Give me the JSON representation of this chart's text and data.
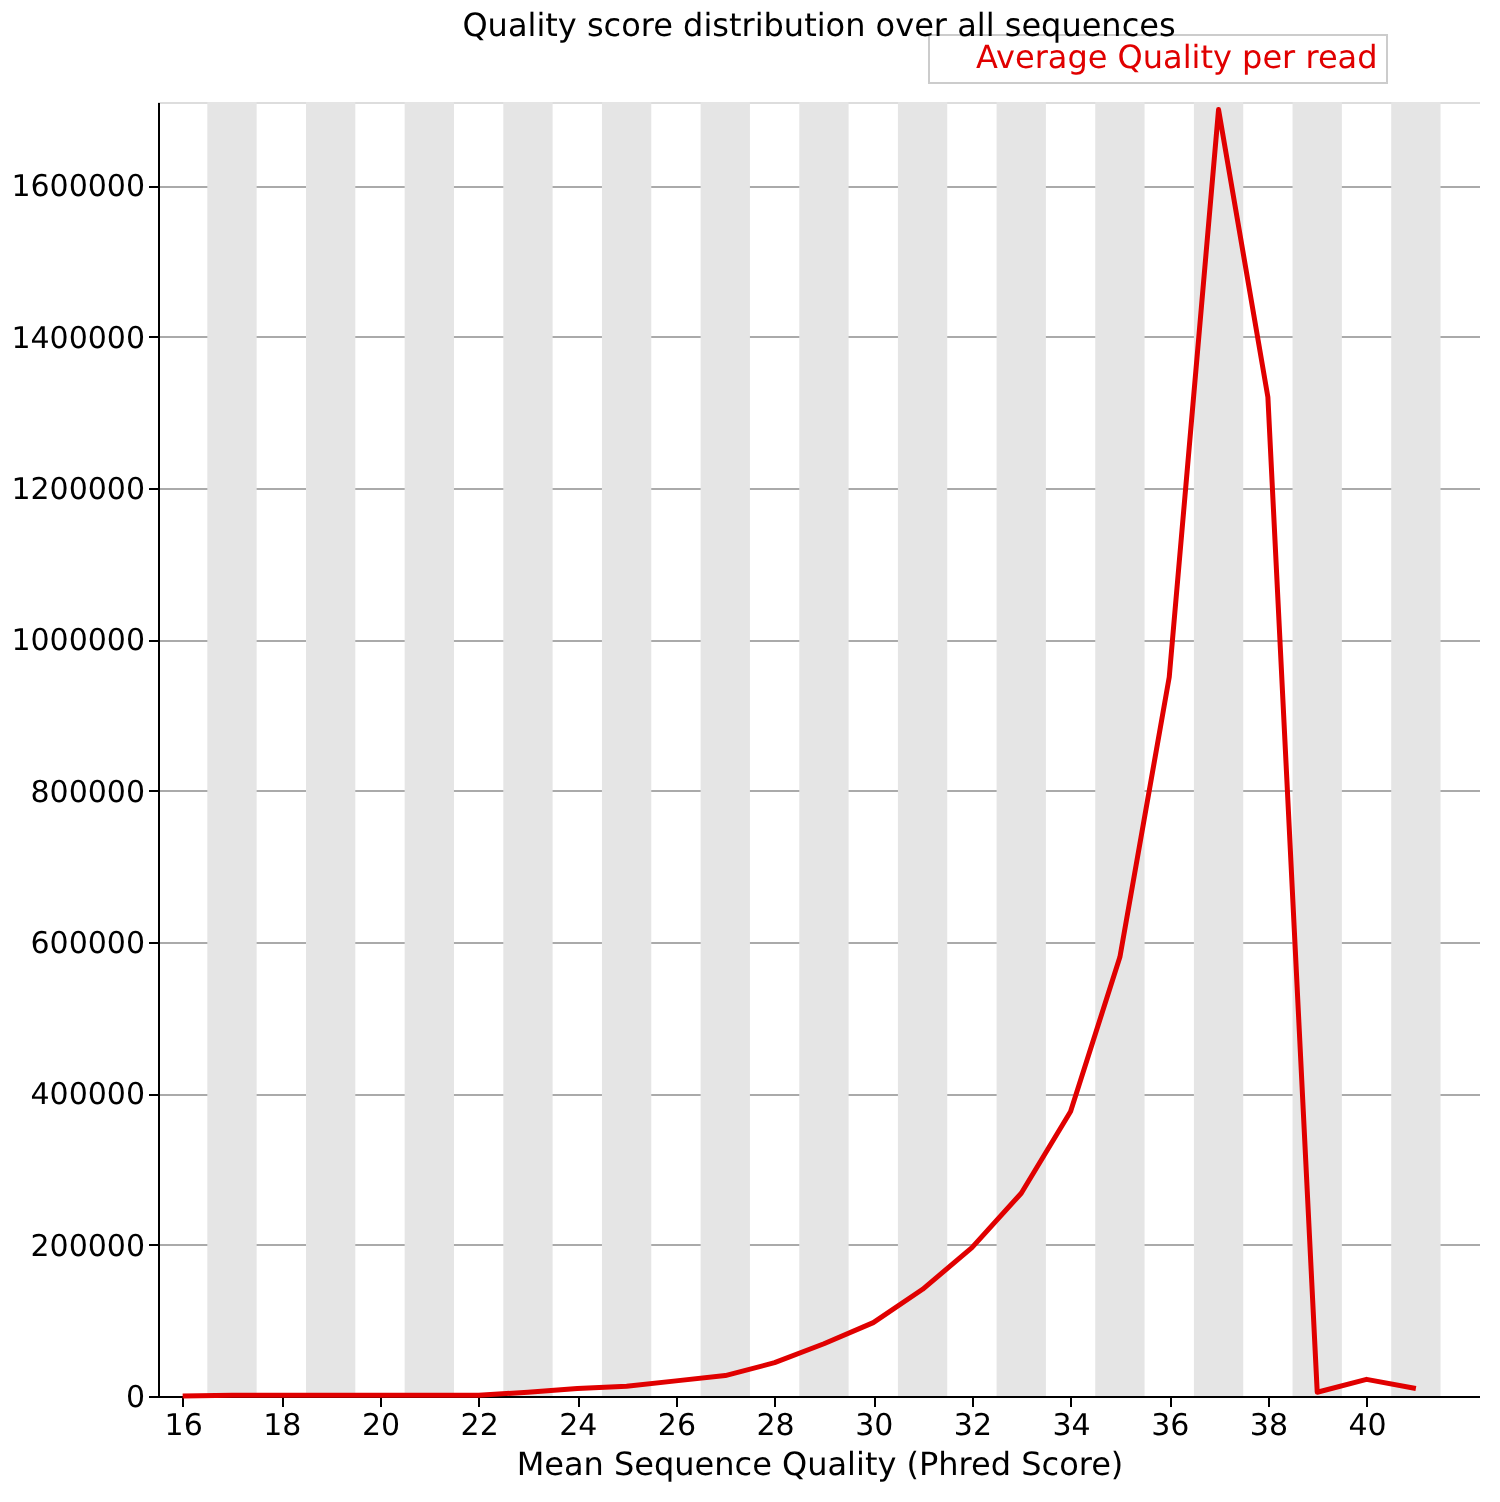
{
  "chart_data": {
    "type": "line",
    "title": "Quality score distribution over all sequences",
    "xlabel": "Mean Sequence Quality (Phred Score)",
    "x": [
      16,
      17,
      18,
      19,
      20,
      21,
      22,
      23,
      24,
      25,
      26,
      27,
      28,
      29,
      30,
      31,
      32,
      33,
      34,
      35,
      36,
      37,
      38,
      39,
      40,
      41
    ],
    "series": [
      {
        "name": "Average Quality per read",
        "color": "#e00000",
        "values": [
          0,
          1000,
          1000,
          1000,
          1000,
          1000,
          1000,
          5000,
          10000,
          13000,
          20000,
          27000,
          44000,
          69000,
          97000,
          141000,
          196000,
          268000,
          376000,
          580000,
          950000,
          1700000,
          1320000,
          5000,
          22000,
          10000
        ]
      }
    ],
    "xlim": [
      15.5,
      42.3
    ],
    "xticks": [
      16,
      18,
      20,
      22,
      24,
      26,
      28,
      30,
      32,
      34,
      36,
      38,
      40
    ],
    "ylim": [
      0,
      1710000
    ],
    "yticks": [
      0,
      200000,
      400000,
      600000,
      800000,
      1000000,
      1200000,
      1400000,
      1600000
    ],
    "bands": [
      {
        "axis": "x",
        "from": 16.5,
        "to": 17.5,
        "color": "#e5e5e5"
      },
      {
        "axis": "x",
        "from": 18.5,
        "to": 19.5,
        "color": "#e5e5e5"
      },
      {
        "axis": "x",
        "from": 20.5,
        "to": 21.5,
        "color": "#e5e5e5"
      },
      {
        "axis": "x",
        "from": 22.5,
        "to": 23.5,
        "color": "#e5e5e5"
      },
      {
        "axis": "x",
        "from": 24.5,
        "to": 25.5,
        "color": "#e5e5e5"
      },
      {
        "axis": "x",
        "from": 26.5,
        "to": 27.5,
        "color": "#e5e5e5"
      },
      {
        "axis": "x",
        "from": 28.5,
        "to": 29.5,
        "color": "#e5e5e5"
      },
      {
        "axis": "x",
        "from": 30.5,
        "to": 31.5,
        "color": "#e5e5e5"
      },
      {
        "axis": "x",
        "from": 32.5,
        "to": 33.5,
        "color": "#e5e5e5"
      },
      {
        "axis": "x",
        "from": 34.5,
        "to": 35.5,
        "color": "#e5e5e5"
      },
      {
        "axis": "x",
        "from": 36.5,
        "to": 37.5,
        "color": "#e5e5e5"
      },
      {
        "axis": "x",
        "from": 38.5,
        "to": 39.5,
        "color": "#e5e5e5"
      },
      {
        "axis": "x",
        "from": 40.5,
        "to": 41.5,
        "color": "#e5e5e5"
      }
    ],
    "grid": "y",
    "legend": "top right",
    "line_style": "solid",
    "marker": "none"
  }
}
